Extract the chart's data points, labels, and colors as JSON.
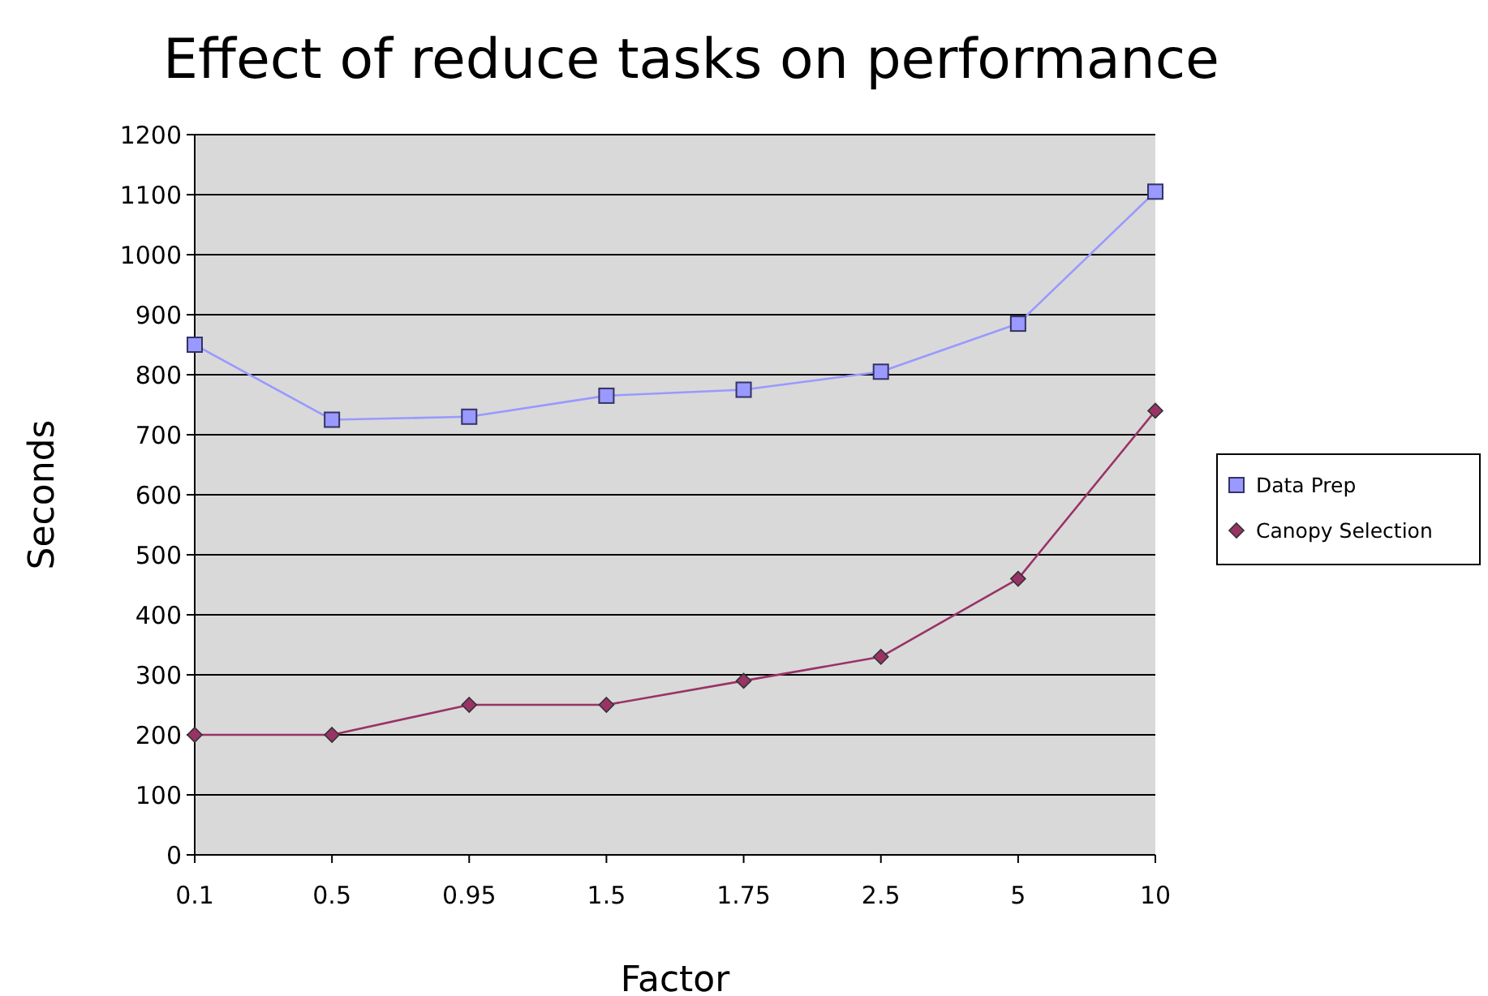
{
  "chart_data": {
    "type": "line",
    "title": "Effect of reduce tasks on performance",
    "xlabel": "Factor",
    "ylabel": "Seconds",
    "categories": [
      "0.1",
      "0.5",
      "0.95",
      "1.5",
      "1.75",
      "2.5",
      "5",
      "10"
    ],
    "series": [
      {
        "name": "Data Prep",
        "color": "#9999ff",
        "marker": "square",
        "values": [
          850,
          725,
          730,
          765,
          775,
          805,
          885,
          1105
        ]
      },
      {
        "name": "Canopy Selection",
        "color": "#993366",
        "marker": "diamond",
        "values": [
          200,
          200,
          250,
          250,
          290,
          330,
          460,
          740
        ]
      }
    ],
    "ylim": [
      0,
      1200
    ],
    "yticks": [
      0,
      100,
      200,
      300,
      400,
      500,
      600,
      700,
      800,
      900,
      1000,
      1100,
      1200
    ],
    "grid": "y",
    "legend": "right"
  }
}
